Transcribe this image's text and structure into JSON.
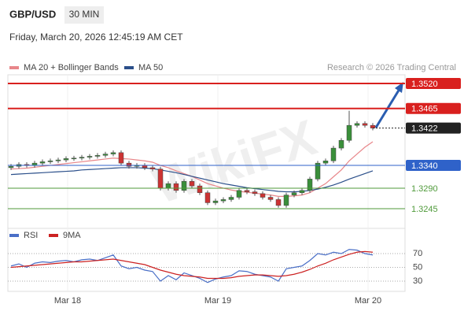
{
  "header": {
    "symbol": "GBP/USD",
    "timeframe": "30 MIN",
    "datetime": "Friday, March 20, 2026 12:45:19 AM CET"
  },
  "watermark": "WikiFX",
  "chart_data": [
    {
      "type": "candlestick",
      "credit": "Research © 2026 Trading Central",
      "up_color": "#3a8f3a",
      "down_color": "#cc3333",
      "xlim": [
        -0.2,
        50.1
      ],
      "xticks": [
        {
          "value": 7.2,
          "label": "Mar 18"
        },
        {
          "value": 26.3,
          "label": "Mar 19"
        },
        {
          "value": 45.4,
          "label": "Mar 20"
        }
      ],
      "ylim": [
        1.321,
        1.354
      ],
      "open": [
        1.3335,
        1.3338,
        1.3342,
        1.334,
        1.3345,
        1.3348,
        1.335,
        1.3352,
        1.3355,
        1.3356,
        1.3358,
        1.336,
        1.3362,
        1.3365,
        1.3368,
        1.3345,
        1.3338,
        1.334,
        1.3335,
        1.3332,
        1.329,
        1.33,
        1.3285,
        1.3305,
        1.3295,
        1.328,
        1.3258,
        1.3262,
        1.3265,
        1.327,
        1.3285,
        1.3282,
        1.3278,
        1.327,
        1.3265,
        1.3252,
        1.3275,
        1.328,
        1.3285,
        1.331,
        1.3345,
        1.335,
        1.3378,
        1.3395,
        1.3428,
        1.3432,
        1.3428
      ],
      "high": [
        1.3343,
        1.3347,
        1.3347,
        1.335,
        1.3353,
        1.3355,
        1.3357,
        1.336,
        1.3361,
        1.3363,
        1.3365,
        1.3367,
        1.337,
        1.3373,
        1.3373,
        1.335,
        1.3345,
        1.3345,
        1.334,
        1.3337,
        1.3305,
        1.3305,
        1.331,
        1.331,
        1.33,
        1.3285,
        1.3267,
        1.327,
        1.3275,
        1.329,
        1.329,
        1.3287,
        1.3283,
        1.3275,
        1.327,
        1.328,
        1.3285,
        1.329,
        1.3315,
        1.335,
        1.3355,
        1.3383,
        1.34,
        1.346,
        1.3437,
        1.3437,
        1.3433
      ],
      "low": [
        1.333,
        1.3333,
        1.3335,
        1.3335,
        1.334,
        1.3343,
        1.3345,
        1.3347,
        1.335,
        1.3351,
        1.3353,
        1.3355,
        1.3357,
        1.336,
        1.334,
        1.3333,
        1.3333,
        1.333,
        1.3327,
        1.3285,
        1.3285,
        1.328,
        1.328,
        1.329,
        1.3275,
        1.3253,
        1.3253,
        1.3257,
        1.326,
        1.3265,
        1.3277,
        1.3273,
        1.3265,
        1.326,
        1.3247,
        1.3247,
        1.327,
        1.3275,
        1.328,
        1.3305,
        1.334,
        1.3345,
        1.3373,
        1.339,
        1.3423,
        1.3423,
        1.3417
      ],
      "close": [
        1.3338,
        1.3342,
        1.334,
        1.3345,
        1.3348,
        1.335,
        1.3352,
        1.3355,
        1.3356,
        1.3358,
        1.336,
        1.3362,
        1.3365,
        1.3368,
        1.3345,
        1.3338,
        1.334,
        1.3335,
        1.3332,
        1.329,
        1.33,
        1.3285,
        1.3305,
        1.3295,
        1.328,
        1.3258,
        1.3262,
        1.3265,
        1.327,
        1.3285,
        1.3282,
        1.3278,
        1.327,
        1.3265,
        1.3252,
        1.3275,
        1.328,
        1.3285,
        1.331,
        1.3345,
        1.335,
        1.3378,
        1.3395,
        1.3428,
        1.3432,
        1.3428,
        1.3422
      ],
      "series": [
        {
          "name": "MA 20 + Bollinger Bands",
          "color": "#e8868a",
          "values": [
            1.3332,
            1.3333,
            1.3334,
            1.3336,
            1.3338,
            1.334,
            1.3342,
            1.3344,
            1.3346,
            1.3348,
            1.335,
            1.3352,
            1.3354,
            1.3356,
            1.3355,
            1.3354,
            1.3352,
            1.335,
            1.3347,
            1.334,
            1.3335,
            1.3328,
            1.3322,
            1.3316,
            1.3308,
            1.33,
            1.3295,
            1.329,
            1.3286,
            1.3283,
            1.3281,
            1.3279,
            1.3277,
            1.3275,
            1.3272,
            1.3272,
            1.3273,
            1.3275,
            1.328,
            1.329,
            1.33,
            1.3315,
            1.333,
            1.335,
            1.3365,
            1.338,
            1.3392
          ]
        },
        {
          "name": "MA 50",
          "color": "#2b4f8a",
          "values": [
            1.332,
            1.3321,
            1.3322,
            1.3323,
            1.3324,
            1.3325,
            1.3326,
            1.3327,
            1.3328,
            1.333,
            1.3331,
            1.3332,
            1.3333,
            1.3334,
            1.3335,
            1.3335,
            1.3335,
            1.3334,
            1.3333,
            1.333,
            1.3327,
            1.3324,
            1.332,
            1.3316,
            1.3312,
            1.3308,
            1.3304,
            1.33,
            1.3297,
            1.3294,
            1.3291,
            1.3289,
            1.3287,
            1.3285,
            1.3283,
            1.3282,
            1.3282,
            1.3283,
            1.3285,
            1.3288,
            1.3292,
            1.3297,
            1.3303,
            1.331,
            1.3316,
            1.3322,
            1.3328
          ]
        }
      ],
      "levels": [
        {
          "value": 1.352,
          "label": "1.3520",
          "color": "#d9201e",
          "style": "box",
          "line": "solid"
        },
        {
          "value": 1.3465,
          "label": "1.3465",
          "color": "#d9201e",
          "style": "box",
          "line": "solid"
        },
        {
          "value": 1.3422,
          "label": "1.3422",
          "color": "#222222",
          "style": "box",
          "line": "dotted"
        },
        {
          "value": 1.334,
          "label": "1.3340",
          "color": "#2f62c9",
          "style": "box",
          "line": "solid"
        },
        {
          "value": 1.329,
          "label": "1.3290",
          "color": "#4f9a3a",
          "style": "text",
          "line": "solid"
        },
        {
          "value": 1.3245,
          "label": "1.3245",
          "color": "#4f9a3a",
          "style": "text",
          "line": "solid"
        }
      ]
    },
    {
      "type": "line",
      "xlim": [
        -0.2,
        50.1
      ],
      "ylim": [
        15,
        85
      ],
      "yticks": [
        70,
        50,
        30
      ],
      "series": [
        {
          "name": "RSI",
          "color": "#4a6fc7",
          "values": [
            52,
            55,
            50,
            56,
            58,
            57,
            59,
            60,
            58,
            61,
            62,
            60,
            64,
            68,
            52,
            48,
            50,
            46,
            44,
            30,
            38,
            32,
            42,
            38,
            34,
            28,
            33,
            36,
            38,
            45,
            44,
            40,
            38,
            36,
            30,
            48,
            50,
            52,
            60,
            70,
            68,
            72,
            70,
            76,
            75,
            70,
            68
          ]
        },
        {
          "name": "9MA",
          "color": "#cc2222",
          "values": [
            50,
            51,
            52,
            53,
            54,
            55,
            56,
            57,
            58,
            58,
            59,
            60,
            61,
            62,
            60,
            58,
            56,
            54,
            50,
            46,
            43,
            40,
            38,
            37,
            36,
            34,
            34,
            34,
            35,
            37,
            38,
            39,
            39,
            38,
            37,
            38,
            40,
            43,
            47,
            52,
            56,
            61,
            65,
            69,
            72,
            73,
            72
          ]
        }
      ]
    }
  ]
}
